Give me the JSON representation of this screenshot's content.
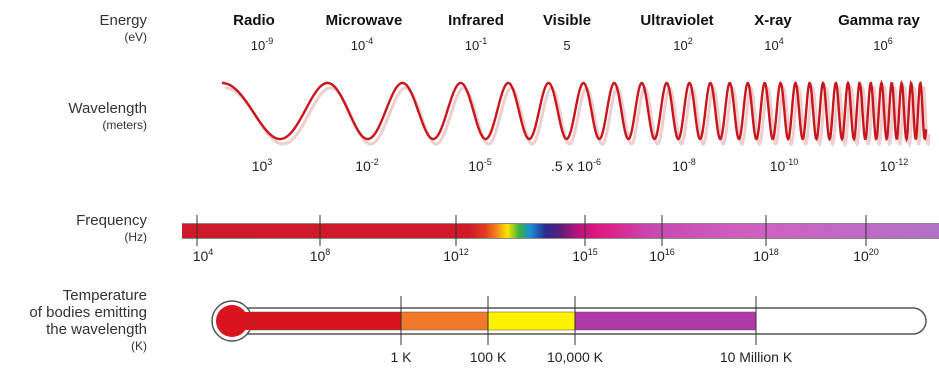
{
  "rows": {
    "energy": {
      "label": "Energy",
      "unit": "(eV)"
    },
    "wavelength": {
      "label": "Wavelength",
      "unit": "(meters)"
    },
    "frequency": {
      "label": "Frequency",
      "unit": "(Hz)"
    },
    "temperature": {
      "label_lines": [
        "Temperature",
        "of bodies emitting",
        "the wavelength"
      ],
      "unit": "(K)"
    }
  },
  "bands": [
    {
      "name": "Radio",
      "energy_base": "10",
      "energy_exp": "-9"
    },
    {
      "name": "Microwave",
      "energy_base": "10",
      "energy_exp": "-4"
    },
    {
      "name": "Infrared",
      "energy_base": "10",
      "energy_exp": "-1"
    },
    {
      "name": "Visible",
      "energy_base": "5",
      "energy_exp": ""
    },
    {
      "name": "Ultraviolet",
      "energy_base": "10",
      "energy_exp": "2"
    },
    {
      "name": "X-ray",
      "energy_base": "10",
      "energy_exp": "4"
    },
    {
      "name": "Gamma ray",
      "energy_base": "10",
      "energy_exp": "6"
    }
  ],
  "wavelengths": [
    {
      "base": "10",
      "exp": "3"
    },
    {
      "base": "10",
      "exp": "-2"
    },
    {
      "base": "10",
      "exp": "-5"
    },
    {
      "base": ".5 x 10",
      "exp": "-6"
    },
    {
      "base": "10",
      "exp": "-8"
    },
    {
      "base": "10",
      "exp": "-10"
    },
    {
      "base": "10",
      "exp": "-12"
    }
  ],
  "frequencies": [
    {
      "base": "10",
      "exp": "4"
    },
    {
      "base": "10",
      "exp": "8"
    },
    {
      "base": "10",
      "exp": "12"
    },
    {
      "base": "10",
      "exp": "15"
    },
    {
      "base": "10",
      "exp": "16"
    },
    {
      "base": "10",
      "exp": "18"
    },
    {
      "base": "10",
      "exp": "20"
    }
  ],
  "temperatures": [
    "1 K",
    "100 K",
    "10,000 K",
    "10 Million K"
  ],
  "colors": {
    "wave": "#c8161d",
    "thermo_red": "#d8141e",
    "orange": "#f07a2a",
    "yellow": "#fff200",
    "magenta": "#b03aa8"
  }
}
